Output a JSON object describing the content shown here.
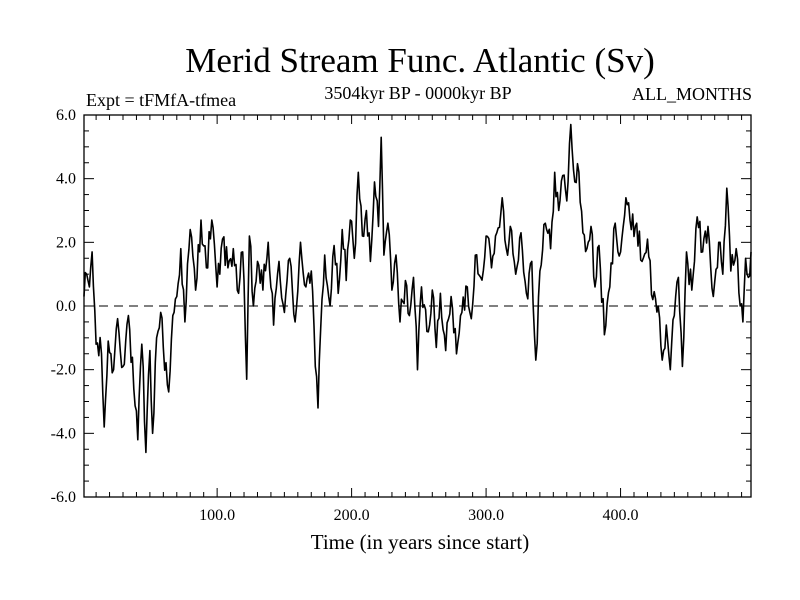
{
  "chart_data": {
    "type": "line",
    "title": "Merid Stream Func. Atlantic (Sv)",
    "subtitle_left": "Expt = tFMfA-tfmea",
    "subtitle_center": "3504kyr BP - 0000kyr BP",
    "subtitle_right": "ALL_MONTHS",
    "xlabel": "Time (in years since start)",
    "ylabel": "",
    "xlim": [
      1,
      497
    ],
    "ylim": [
      -6,
      6
    ],
    "x_ticks": [
      100,
      200,
      300,
      400
    ],
    "x_tick_labels": [
      "100.0",
      "200.0",
      "300.0",
      "400.0"
    ],
    "y_ticks": [
      -6,
      -4,
      -2,
      0,
      2,
      4,
      6
    ],
    "y_tick_labels": [
      "-6.0",
      "-4.0",
      "-2.0",
      "0.0",
      "2.0",
      "4.0",
      "6.0"
    ],
    "zero_line": 0,
    "anchors": [
      [
        1,
        0.3
      ],
      [
        3,
        1.0
      ],
      [
        5,
        0.6
      ],
      [
        7,
        1.7
      ],
      [
        10,
        -1.2
      ],
      [
        14,
        -1.5
      ],
      [
        16,
        -3.8
      ],
      [
        19,
        -1.1
      ],
      [
        22,
        -2.1
      ],
      [
        26,
        -0.4
      ],
      [
        30,
        -1.9
      ],
      [
        34,
        -0.3
      ],
      [
        38,
        -2.6
      ],
      [
        41,
        -4.2
      ],
      [
        44,
        -1.2
      ],
      [
        47,
        -4.6
      ],
      [
        50,
        -1.4
      ],
      [
        52,
        -4.0
      ],
      [
        55,
        -1.0
      ],
      [
        58,
        -0.2
      ],
      [
        60,
        -1.3
      ],
      [
        64,
        -2.7
      ],
      [
        67,
        -0.3
      ],
      [
        70,
        0.3
      ],
      [
        73,
        1.8
      ],
      [
        76,
        -0.5
      ],
      [
        80,
        2.4
      ],
      [
        84,
        0.5
      ],
      [
        88,
        2.7
      ],
      [
        92,
        1.2
      ],
      [
        96,
        2.7
      ],
      [
        100,
        0.6
      ],
      [
        104,
        2.1
      ],
      [
        108,
        1.2
      ],
      [
        112,
        1.8
      ],
      [
        116,
        0.4
      ],
      [
        119,
        1.7
      ],
      [
        122,
        -2.3
      ],
      [
        124,
        2.2
      ],
      [
        127,
        0.0
      ],
      [
        130,
        1.4
      ],
      [
        134,
        0.5
      ],
      [
        138,
        2.0
      ],
      [
        142,
        -0.6
      ],
      [
        146,
        1.4
      ],
      [
        150,
        -0.2
      ],
      [
        154,
        1.5
      ],
      [
        158,
        -0.5
      ],
      [
        162,
        2.0
      ],
      [
        166,
        0.6
      ],
      [
        170,
        1.1
      ],
      [
        173,
        -1.9
      ],
      [
        175,
        -3.2
      ],
      [
        177,
        -0.7
      ],
      [
        180,
        1.6
      ],
      [
        184,
        0.0
      ],
      [
        187,
        1.9
      ],
      [
        190,
        0.4
      ],
      [
        193,
        2.4
      ],
      [
        196,
        0.8
      ],
      [
        199,
        2.7
      ],
      [
        202,
        1.5
      ],
      [
        205,
        4.2
      ],
      [
        208,
        2.2
      ],
      [
        211,
        3.0
      ],
      [
        214,
        1.4
      ],
      [
        217,
        3.9
      ],
      [
        220,
        2.5
      ],
      [
        222,
        5.3
      ],
      [
        224,
        1.6
      ],
      [
        227,
        2.6
      ],
      [
        230,
        0.5
      ],
      [
        233,
        1.6
      ],
      [
        236,
        -0.5
      ],
      [
        240,
        0.8
      ],
      [
        243,
        -0.3
      ],
      [
        246,
        0.9
      ],
      [
        249,
        -2.0
      ],
      [
        252,
        0.6
      ],
      [
        256,
        -0.8
      ],
      [
        260,
        0.5
      ],
      [
        263,
        -1.3
      ],
      [
        266,
        0.4
      ],
      [
        270,
        -1.4
      ],
      [
        274,
        0.3
      ],
      [
        278,
        -1.5
      ],
      [
        282,
        -0.2
      ],
      [
        286,
        0.6
      ],
      [
        289,
        -0.4
      ],
      [
        292,
        1.6
      ],
      [
        296,
        0.9
      ],
      [
        300,
        2.2
      ],
      [
        304,
        1.2
      ],
      [
        308,
        2.3
      ],
      [
        312,
        3.4
      ],
      [
        315,
        1.8
      ],
      [
        318,
        2.5
      ],
      [
        322,
        1.0
      ],
      [
        326,
        2.3
      ],
      [
        330,
        0.4
      ],
      [
        334,
        1.4
      ],
      [
        337,
        -1.7
      ],
      [
        340,
        1.1
      ],
      [
        344,
        2.6
      ],
      [
        348,
        1.8
      ],
      [
        351,
        4.2
      ],
      [
        354,
        3.0
      ],
      [
        357,
        4.1
      ],
      [
        360,
        3.3
      ],
      [
        363,
        5.7
      ],
      [
        366,
        3.9
      ],
      [
        369,
        4.2
      ],
      [
        372,
        2.3
      ],
      [
        375,
        1.8
      ],
      [
        378,
        2.5
      ],
      [
        381,
        0.6
      ],
      [
        384,
        1.9
      ],
      [
        388,
        -0.9
      ],
      [
        392,
        0.6
      ],
      [
        396,
        2.6
      ],
      [
        400,
        1.7
      ],
      [
        404,
        3.4
      ],
      [
        408,
        2.4
      ],
      [
        412,
        2.6
      ],
      [
        416,
        1.4
      ],
      [
        420,
        2.1
      ],
      [
        424,
        0.2
      ],
      [
        428,
        0.0
      ],
      [
        431,
        -1.7
      ],
      [
        434,
        -0.6
      ],
      [
        437,
        -2.0
      ],
      [
        440,
        -0.3
      ],
      [
        443,
        0.9
      ],
      [
        446,
        -1.9
      ],
      [
        449,
        1.7
      ],
      [
        453,
        0.5
      ],
      [
        457,
        2.8
      ],
      [
        461,
        1.7
      ],
      [
        465,
        2.5
      ],
      [
        469,
        0.3
      ],
      [
        473,
        2.0
      ],
      [
        476,
        1.0
      ],
      [
        479,
        3.7
      ],
      [
        482,
        1.1
      ],
      [
        486,
        1.8
      ],
      [
        489,
        0.0
      ],
      [
        491,
        -0.5
      ],
      [
        493,
        1.5
      ],
      [
        495,
        0.9
      ],
      [
        497,
        1.7
      ]
    ],
    "series": [
      {
        "name": "Merid Stream Func. Atlantic",
        "color": "#000000"
      }
    ]
  }
}
